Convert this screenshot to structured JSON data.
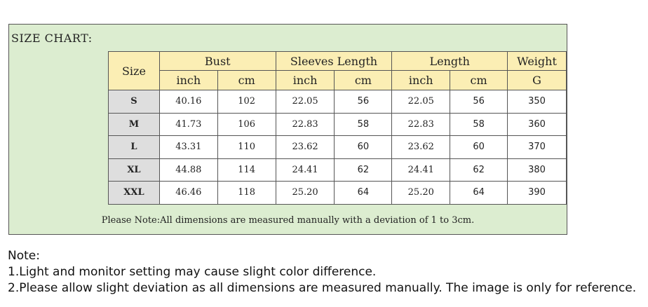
{
  "chart": {
    "title": "SIZE CHART:",
    "size_header": "Size",
    "groups": [
      "Bust",
      "Sleeves Length",
      "Length",
      "Weight"
    ],
    "units": [
      "inch",
      "cm",
      "inch",
      "cm",
      "inch",
      "cm",
      "G"
    ],
    "rows": [
      {
        "size": "S",
        "cells": [
          "40.16",
          "102",
          "22.05",
          "56",
          "22.05",
          "56",
          "350"
        ]
      },
      {
        "size": "M",
        "cells": [
          "41.73",
          "106",
          "22.83",
          "58",
          "22.83",
          "58",
          "360"
        ]
      },
      {
        "size": "L",
        "cells": [
          "43.31",
          "110",
          "23.62",
          "60",
          "23.62",
          "60",
          "370"
        ]
      },
      {
        "size": "XL",
        "cells": [
          "44.88",
          "114",
          "24.41",
          "62",
          "24.41",
          "62",
          "380"
        ]
      },
      {
        "size": "XXL",
        "cells": [
          "46.46",
          "118",
          "25.20",
          "64",
          "25.20",
          "64",
          "390"
        ]
      }
    ],
    "note": "Please Note:All dimensions are measured manually with a deviation of 1 to 3cm."
  },
  "notes": {
    "heading": "Note:",
    "line1": "1.Light and monitor setting may cause slight color difference.",
    "line2": "2.Please allow slight deviation as all dimensions are measured manually. The image is only for reference."
  },
  "colors": {
    "panel_bg": "#dcedd0",
    "header_bg": "#fbeeb4",
    "size_col_bg": "#dedede",
    "cell_bg": "#ffffff",
    "border": "#555555"
  }
}
